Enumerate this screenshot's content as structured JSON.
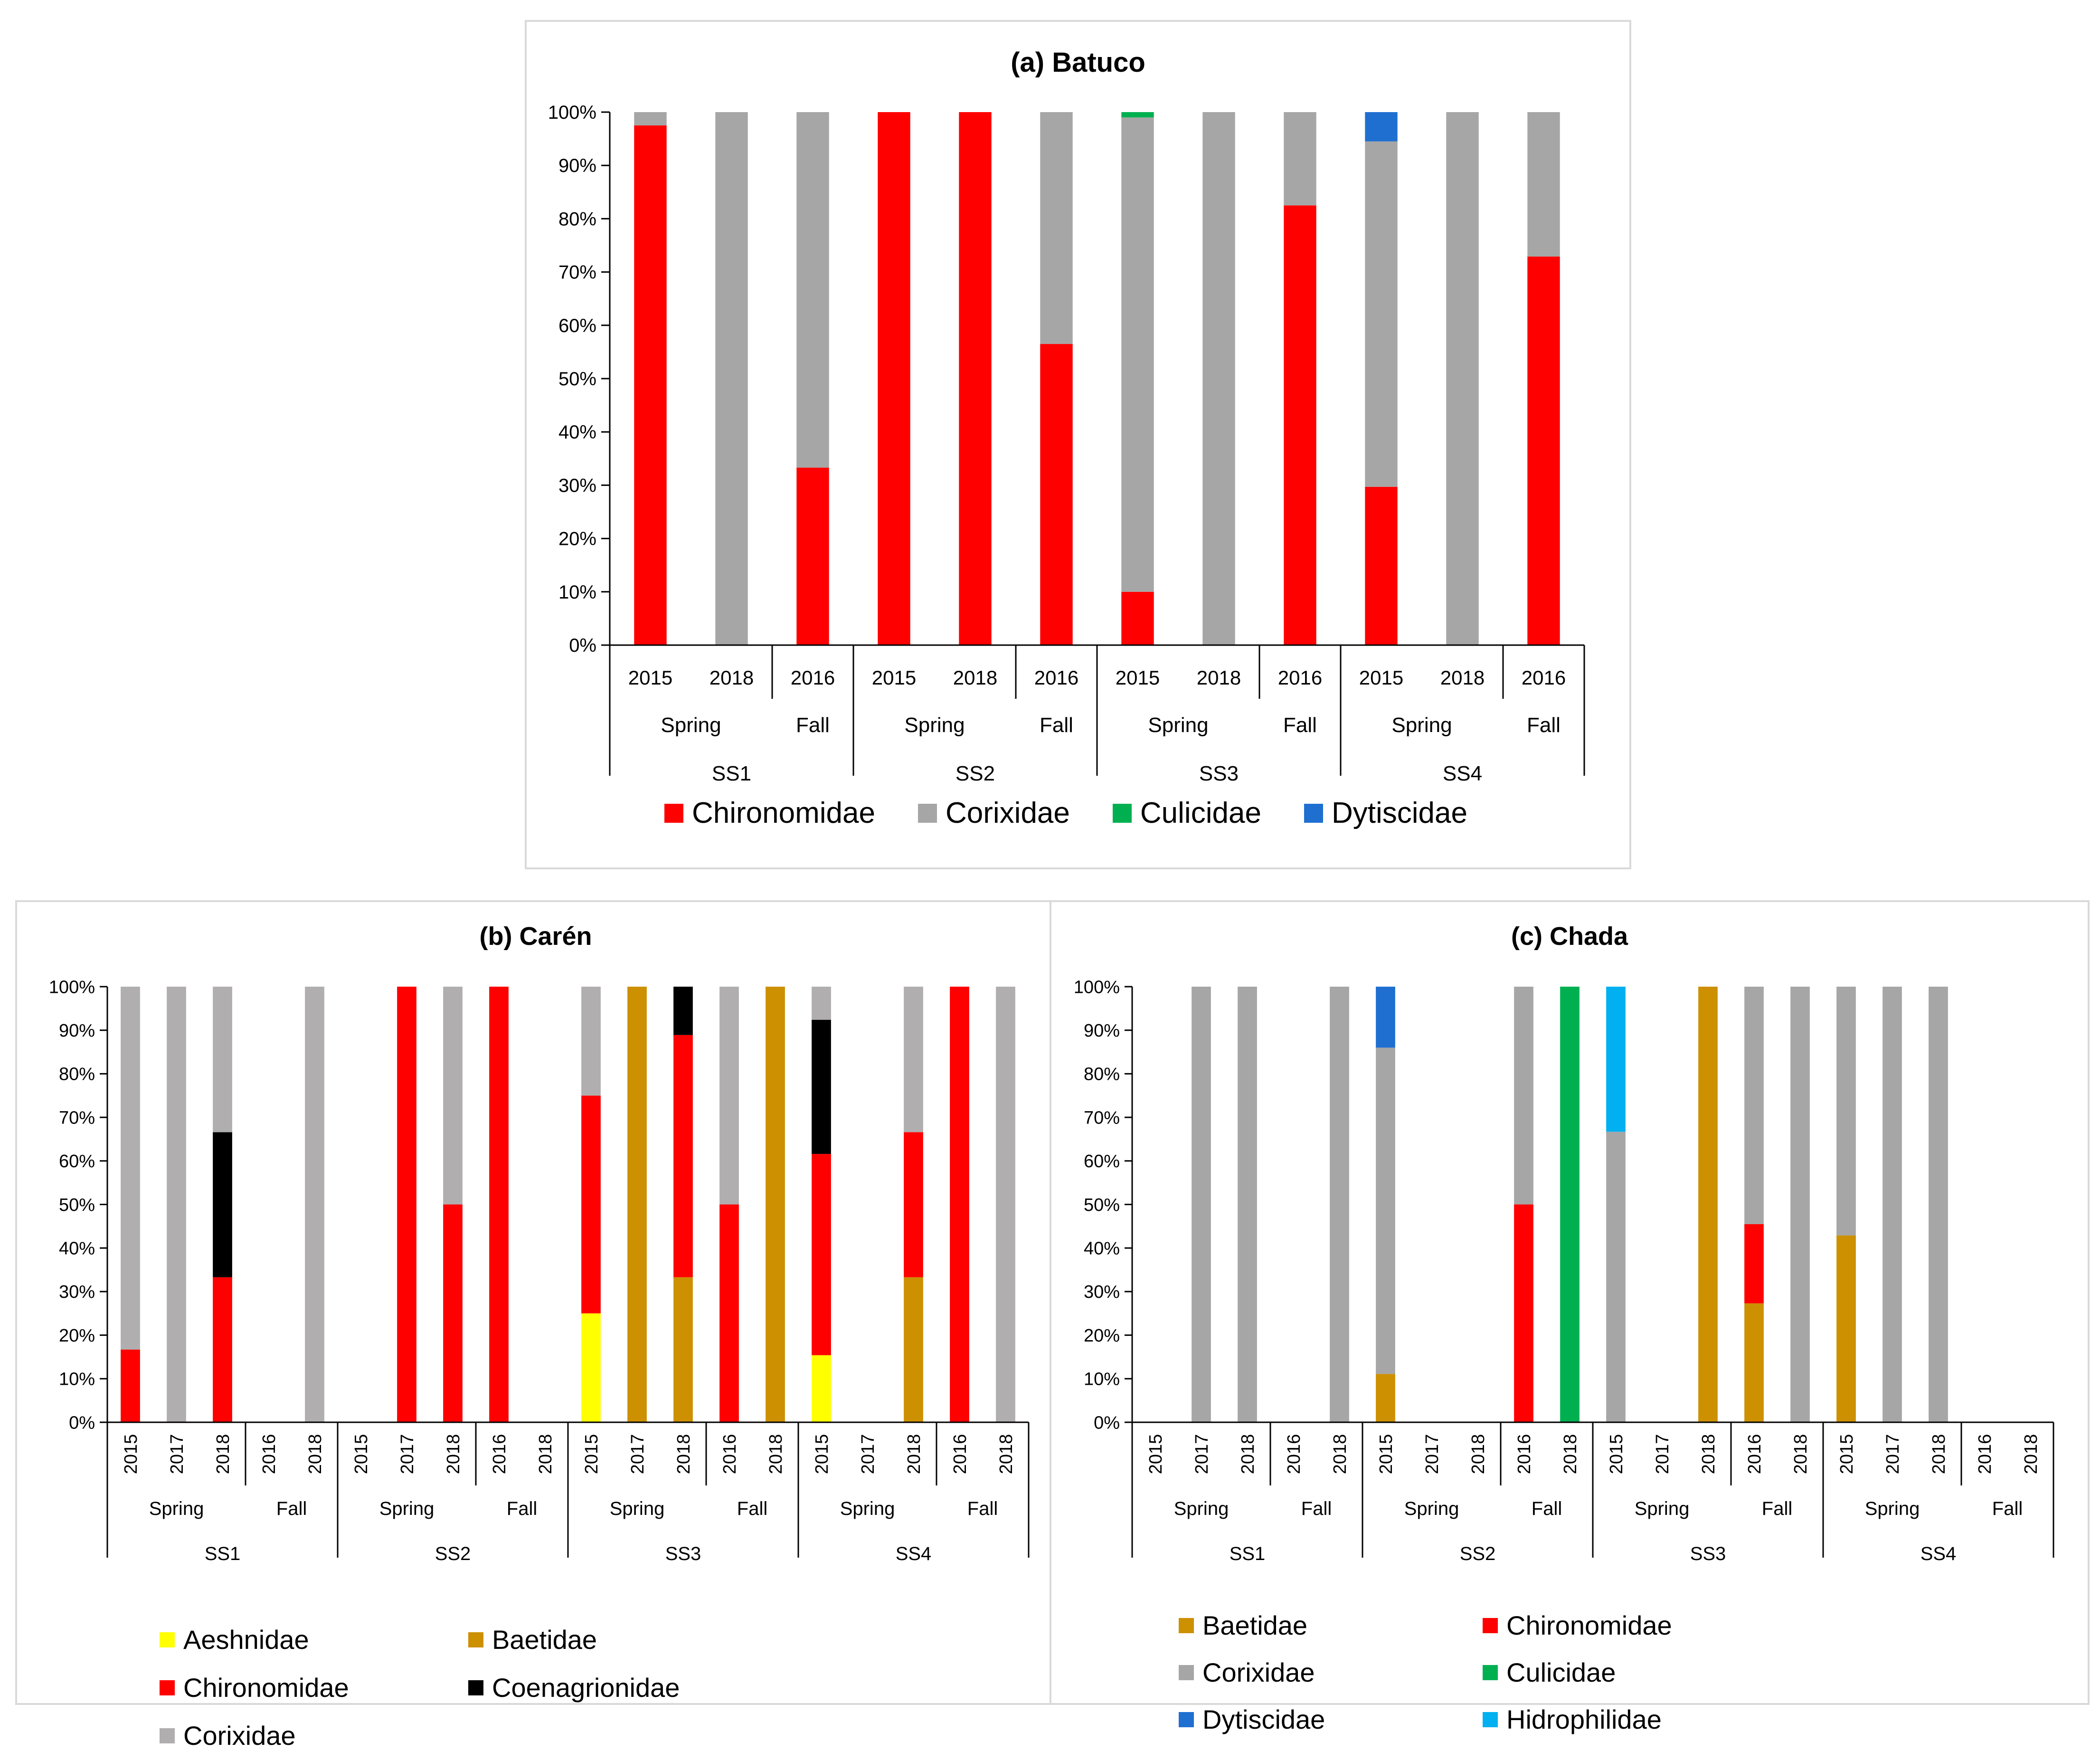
{
  "species_colors": {
    "Aeshnidae": "#ffff00",
    "Baetidae": "#cc9000",
    "Chironomidae": "#ff0000",
    "Coenagrionidae": "#000000",
    "Corixidae_a": "#a6a6a6",
    "Corixidae_b": "#b0aeae",
    "Corixidae_c": "#a6a6a6",
    "Culicidae": "#00b050",
    "Dytiscidae": "#1f6fd1",
    "Hidrophilidae": "#00b0f0"
  },
  "chart_data": [
    {
      "id": "a",
      "type": "bar",
      "stacked": "percent",
      "title": "(a) Batuco",
      "ylim": [
        0,
        100
      ],
      "yticks": [
        "0%",
        "10%",
        "20%",
        "30%",
        "40%",
        "50%",
        "60%",
        "70%",
        "80%",
        "90%",
        "100%"
      ],
      "sites": [
        {
          "name": "SS1",
          "seasons": [
            {
              "name": "Spring",
              "years": [
                "2015",
                "2018"
              ]
            },
            {
              "name": "Fall",
              "years": [
                "2016"
              ]
            }
          ]
        },
        {
          "name": "SS2",
          "seasons": [
            {
              "name": "Spring",
              "years": [
                "2015",
                "2018"
              ]
            },
            {
              "name": "Fall",
              "years": [
                "2016"
              ]
            }
          ]
        },
        {
          "name": "SS3",
          "seasons": [
            {
              "name": "Spring",
              "years": [
                "2015",
                "2018"
              ]
            },
            {
              "name": "Fall",
              "years": [
                "2016"
              ]
            }
          ]
        },
        {
          "name": "SS4",
          "seasons": [
            {
              "name": "Spring",
              "years": [
                "2015",
                "2018"
              ]
            },
            {
              "name": "Fall",
              "years": [
                "2016"
              ]
            }
          ]
        }
      ],
      "series": [
        {
          "name": "Chironomidae",
          "color_key": "Chironomidae",
          "values": [
            97.5,
            0,
            33.3,
            100,
            100,
            56.5,
            10,
            0,
            82.5,
            29.7,
            0,
            72.9
          ]
        },
        {
          "name": "Corixidae",
          "color_key": "Corixidae_a",
          "values": [
            2.5,
            100,
            66.7,
            0,
            0,
            43.5,
            89,
            100,
            17.5,
            64.8,
            100,
            27.1
          ]
        },
        {
          "name": "Culicidae",
          "color_key": "Culicidae",
          "values": [
            0,
            0,
            0,
            0,
            0,
            0,
            1,
            0,
            0,
            0,
            0,
            0
          ]
        },
        {
          "name": "Dytiscidae",
          "color_key": "Dytiscidae",
          "values": [
            0,
            0,
            0,
            0,
            0,
            0,
            0,
            0,
            0,
            5.5,
            0,
            0
          ]
        }
      ],
      "legend": [
        "Chironomidae",
        "Corixidae",
        "Culicidae",
        "Dytiscidae"
      ]
    },
    {
      "id": "b",
      "type": "bar",
      "stacked": "percent",
      "title": "(b) Carén",
      "ylim": [
        0,
        100
      ],
      "yticks": [
        "0%",
        "10%",
        "20%",
        "30%",
        "40%",
        "50%",
        "60%",
        "70%",
        "80%",
        "90%",
        "100%"
      ],
      "sites": [
        {
          "name": "SS1",
          "seasons": [
            {
              "name": "Spring",
              "years": [
                "2015",
                "2017",
                "2018"
              ]
            },
            {
              "name": "Fall",
              "years": [
                "2016",
                "2018"
              ]
            }
          ]
        },
        {
          "name": "SS2",
          "seasons": [
            {
              "name": "Spring",
              "years": [
                "2015",
                "2017",
                "2018"
              ]
            },
            {
              "name": "Fall",
              "years": [
                "2016",
                "2018"
              ]
            }
          ]
        },
        {
          "name": "SS3",
          "seasons": [
            {
              "name": "Spring",
              "years": [
                "2015",
                "2017",
                "2018"
              ]
            },
            {
              "name": "Fall",
              "years": [
                "2016",
                "2018"
              ]
            }
          ]
        },
        {
          "name": "SS4",
          "seasons": [
            {
              "name": "Spring",
              "years": [
                "2015",
                "2017",
                "2018"
              ]
            },
            {
              "name": "Fall",
              "years": [
                "2016",
                "2018"
              ]
            }
          ]
        }
      ],
      "series": [
        {
          "name": "Aeshnidae",
          "color_key": "Aeshnidae",
          "values": [
            0,
            0,
            0,
            0,
            0,
            0,
            0,
            0,
            0,
            0,
            25,
            0,
            0,
            0,
            0,
            15.4,
            0,
            0,
            0,
            0
          ]
        },
        {
          "name": "Baetidae",
          "color_key": "Baetidae",
          "values": [
            0,
            0,
            0,
            0,
            0,
            0,
            0,
            0,
            0,
            0,
            0,
            100,
            33.3,
            0,
            100,
            0,
            0,
            33.3,
            0,
            0
          ]
        },
        {
          "name": "Chironomidae",
          "color_key": "Chironomidae",
          "values": [
            16.7,
            0,
            33.3,
            0,
            0,
            0,
            100,
            50,
            100,
            0,
            50,
            0,
            55.6,
            50,
            0,
            46.2,
            0,
            33.3,
            100,
            0
          ]
        },
        {
          "name": "Coenagrionidae",
          "color_key": "Coenagrionidae",
          "values": [
            0,
            0,
            33.3,
            0,
            0,
            0,
            0,
            0,
            0,
            0,
            0,
            0,
            11.1,
            0,
            0,
            30.8,
            0,
            0,
            0,
            0
          ]
        },
        {
          "name": "Corixidae",
          "color_key": "Corixidae_b",
          "values": [
            83.3,
            100,
            33.4,
            0,
            100,
            0,
            0,
            50,
            0,
            0,
            25,
            0,
            0,
            50,
            0,
            7.6,
            0,
            33.4,
            0,
            100
          ]
        }
      ],
      "legend": [
        "Aeshnidae",
        "Baetidae",
        "Chironomidae",
        "Coenagrionidae",
        "Corixidae"
      ]
    },
    {
      "id": "c",
      "type": "bar",
      "stacked": "percent",
      "title": "(c) Chada",
      "ylim": [
        0,
        100
      ],
      "yticks": [
        "0%",
        "10%",
        "20%",
        "30%",
        "40%",
        "50%",
        "60%",
        "70%",
        "80%",
        "90%",
        "100%"
      ],
      "sites": [
        {
          "name": "SS1",
          "seasons": [
            {
              "name": "Spring",
              "years": [
                "2015",
                "2017",
                "2018"
              ]
            },
            {
              "name": "Fall",
              "years": [
                "2016",
                "2018"
              ]
            }
          ]
        },
        {
          "name": "SS2",
          "seasons": [
            {
              "name": "Spring",
              "years": [
                "2015",
                "2017",
                "2018"
              ]
            },
            {
              "name": "Fall",
              "years": [
                "2016",
                "2018"
              ]
            }
          ]
        },
        {
          "name": "SS3",
          "seasons": [
            {
              "name": "Spring",
              "years": [
                "2015",
                "2017",
                "2018"
              ]
            },
            {
              "name": "Fall",
              "years": [
                "2016",
                "2018"
              ]
            }
          ]
        },
        {
          "name": "SS4",
          "seasons": [
            {
              "name": "Spring",
              "years": [
                "2015",
                "2017",
                "2018"
              ]
            },
            {
              "name": "Fall",
              "years": [
                "2016",
                "2018"
              ]
            }
          ]
        }
      ],
      "series": [
        {
          "name": "Baetidae",
          "color_key": "Baetidae",
          "values": [
            0,
            0,
            0,
            0,
            0,
            11.1,
            0,
            0,
            0,
            0,
            0,
            0,
            100,
            27.3,
            0,
            42.9,
            0,
            0,
            0,
            0
          ]
        },
        {
          "name": "Chironomidae",
          "color_key": "Chironomidae",
          "values": [
            0,
            0,
            0,
            0,
            0,
            0,
            0,
            0,
            50,
            0,
            0,
            0,
            0,
            18.2,
            0,
            0,
            0,
            0,
            0,
            0
          ]
        },
        {
          "name": "Corixidae",
          "color_key": "Corixidae_c",
          "values": [
            0,
            100,
            100,
            0,
            100,
            74.9,
            0,
            0,
            50,
            0,
            66.7,
            0,
            0,
            54.5,
            100,
            57.1,
            100,
            100,
            0,
            0
          ]
        },
        {
          "name": "Culicidae",
          "color_key": "Culicidae",
          "values": [
            0,
            0,
            0,
            0,
            0,
            0,
            0,
            0,
            0,
            100,
            0,
            0,
            0,
            0,
            0,
            0,
            0,
            0,
            0,
            0
          ]
        },
        {
          "name": "Dytiscidae",
          "color_key": "Dytiscidae",
          "values": [
            0,
            0,
            0,
            0,
            0,
            14,
            0,
            0,
            0,
            0,
            0,
            0,
            0,
            0,
            0,
            0,
            0,
            0,
            0,
            0
          ]
        },
        {
          "name": "Hidrophilidae",
          "color_key": "Hidrophilidae",
          "values": [
            0,
            0,
            0,
            0,
            0,
            0,
            0,
            0,
            0,
            0,
            33.3,
            0,
            0,
            0,
            0,
            0,
            0,
            0,
            0,
            0
          ]
        }
      ],
      "legend": [
        "Baetidae",
        "Chironomidae",
        "Corixidae",
        "Culicidae",
        "Dytiscidae",
        "Hidrophilidae"
      ]
    }
  ]
}
